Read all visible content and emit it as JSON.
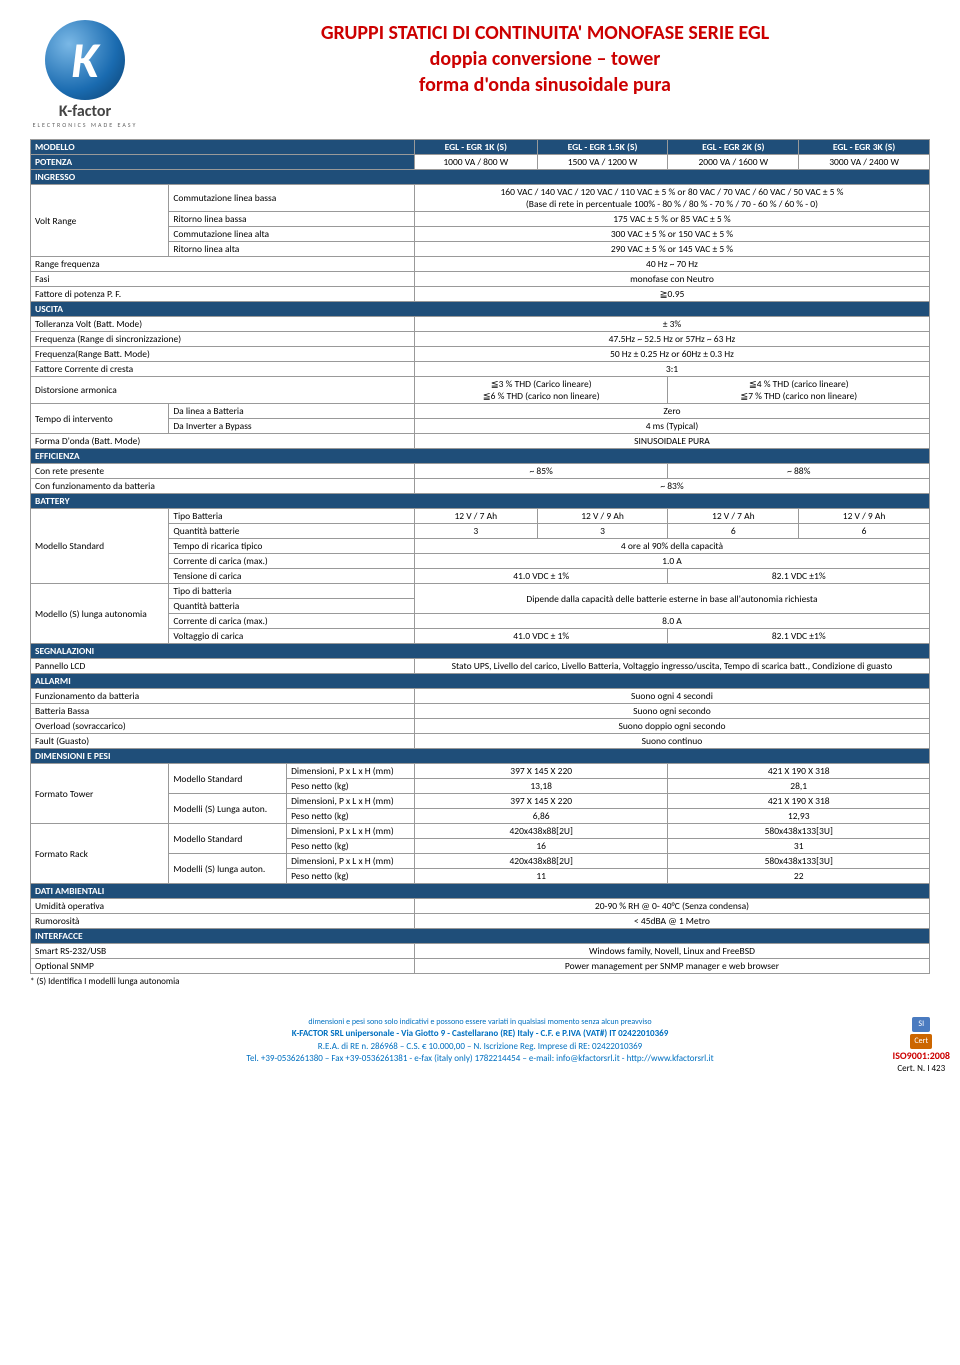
{
  "logo": {
    "name": "K-factor",
    "tagline": "ELECTRONICS MADE EASY"
  },
  "title": {
    "line1": "GRUPPI STATICI DI CONTINUITA' MONOFASE SERIE EGL",
    "line2": "doppia conversione – tower",
    "line3": "forma d'onda sinusoidale pura"
  },
  "models_row": {
    "label": "MODELLO",
    "m1": "EGL - EGR 1K (S)",
    "m2": "EGL - EGR 1.5K (S)",
    "m3": "EGL - EGR 2K (S)",
    "m4": "EGL - EGR 3K (S)"
  },
  "potenza": {
    "label": "POTENZA",
    "v1": "1000 VA / 800 W",
    "v2": "1500 VA / 1200 W",
    "v3": "2000 VA / 1600 W",
    "v4": "3000 VA / 2400 W"
  },
  "sections": {
    "ingresso": "INGRESSO",
    "uscita": "USCITA",
    "efficienza": "EFFICIENZA",
    "battery": "BATTERY",
    "segnalazioni": "SEGNALAZIONI",
    "allarmi": "ALLARMI",
    "dimensioni": "DIMENSIONI E PESI",
    "ambientali": "DATI AMBIENTALI",
    "interfacce": "INTERFACCE"
  },
  "ingresso": {
    "volt_range": "Volt Range",
    "cl_bassa": "Commutazione linea bassa",
    "cl_bassa_v": "160 VAC / 140 VAC / 120 VAC / 110 VAC ± 5 % or 80 VAC / 70 VAC / 60 VAC / 50 VAC ± 5 %\n(Base di rete in percentuale 100% - 80 % / 80 % - 70 % / 70 - 60 % / 60 % - 0)",
    "r_bassa": "Ritorno linea bassa",
    "r_bassa_v": "175 VAC ± 5 % or 85 VAC ± 5 %",
    "cl_alta": "Commutazione linea alta",
    "cl_alta_v": "300 VAC ± 5 % or 150 VAC ± 5 %",
    "r_alta": "Ritorno linea alta",
    "r_alta_v": "290 VAC ± 5 % or 145 VAC ± 5 %",
    "range_freq": "Range frequenza",
    "range_freq_v": "40 Hz ~ 70 Hz",
    "fasi": "Fasi",
    "fasi_v": "monofase con Neutro",
    "pf": "Fattore di potenza P. F.",
    "pf_v": "≧0.95"
  },
  "uscita": {
    "toll": "Tolleranza Volt (Batt. Mode)",
    "toll_v": "± 3%",
    "freq_sync": "Frequenza (Range di sincronizzazione)",
    "freq_sync_v": "47.5Hz ~ 52.5 Hz or 57Hz ~ 63 Hz",
    "freq_batt": "Frequenza(Range Batt. Mode)",
    "freq_batt_v": "50 Hz ± 0.25 Hz or 60Hz ± 0.3 Hz",
    "crest": "Fattore Corrente di cresta",
    "crest_v": "3:1",
    "dist": "Distorsione armonica",
    "dist_v1": "≦3 % THD (Carico lineare)\n≦6 % THD (carico non lineare)",
    "dist_v2": "≦4 % THD (carico lineare)\n≦7 % THD (carico non lineare)",
    "tempo": "Tempo di intervento",
    "linea_batt": "Da linea a Batteria",
    "linea_batt_v": "Zero",
    "inv_bypass": "Da Inverter a Bypass",
    "inv_bypass_v": "4 ms (Typical)",
    "forma": "Forma D'onda (Batt. Mode)",
    "forma_v": "SINUSOIDALE PURA"
  },
  "efficienza": {
    "rete": "Con rete presente",
    "rete_v1": "~ 85%",
    "rete_v2": "~ 88%",
    "batt": "Con funzionamento da batteria",
    "batt_v": "~ 83%"
  },
  "battery": {
    "standard": "Modello Standard",
    "tipo": "Tipo Batteria",
    "tipo_v1": "12 V / 7 Ah",
    "tipo_v2": "12 V / 9 Ah",
    "tipo_v3": "12 V / 7 Ah",
    "tipo_v4": "12 V / 9 Ah",
    "qty": "Quantità batterie",
    "qty_v1": "3",
    "qty_v2": "3",
    "qty_v3": "6",
    "qty_v4": "6",
    "ricarica": "Tempo di ricarica tipico",
    "ricarica_v": "4 ore al 90% della capacità",
    "corr": "Corrente di carica (max.)",
    "corr_v": "1.0 A",
    "tens": "Tensione di carica",
    "tens_v1": "41.0 VDC ± 1%",
    "tens_v2": "82.1 VDC ±1%",
    "lunga": "Modello (S) lunga autonomia",
    "tipo_batt2": "Tipo di batteria",
    "qty2": "Quantità batteria",
    "dipende": "Dipende dalla capacità delle batterie esterne in base all'autonomia richiesta",
    "corr2": "Corrente di carica (max.)",
    "corr2_v": "8.0 A",
    "volt2": "Voltaggio di carica",
    "volt2_v1": "41.0 VDC ± 1%",
    "volt2_v2": "82.1 VDC ±1%"
  },
  "segnalazioni": {
    "pannello": "Pannello LCD",
    "pannello_v": "Stato UPS, Livello del carico, Livello Batteria, Voltaggio ingresso/uscita, Tempo di scarica batt., Condizione di guasto"
  },
  "allarmi": {
    "batt": "Funzionamento da batteria",
    "batt_v": "Suono ogni 4 secondi",
    "bassa": "Batteria Bassa",
    "bassa_v": "Suono ogni secondo",
    "overload": "Overload (sovraccarico)",
    "overload_v": "Suono doppio ogni secondo",
    "fault": "Fault (Guasto)",
    "fault_v": "Suono continuo"
  },
  "dimensioni": {
    "tower": "Formato Tower",
    "rack": "Formato Rack",
    "std": "Modello Standard",
    "s_lunga": "Modelli (S) Lunga auton.",
    "s_lunga2": "Modelli (S) lunga auton.",
    "dim": "Dimensioni, P x L x H (mm)",
    "peso": "Peso netto (kg)",
    "t_std_dim1": "397 X 145 X 220",
    "t_std_dim2": "421 X 190 X 318",
    "t_std_peso1": "13,18",
    "t_std_peso2": "28,1",
    "t_s_dim1": "397 X 145 X 220",
    "t_s_dim2": "421 X 190 X 318",
    "t_s_peso1": "6,86",
    "t_s_peso2": "12,93",
    "r_std_dim1": "420x438x88[2U]",
    "r_std_dim2": "580x438x133[3U]",
    "r_std_peso1": "16",
    "r_std_peso2": "31",
    "r_s_dim1": "420x438x88[2U]",
    "r_s_dim2": "580x438x133[3U]",
    "r_s_peso1": "11",
    "r_s_peso2": "22"
  },
  "ambientali": {
    "umid": "Umidità operativa",
    "umid_v": "20-90 % RH @ 0- 40°C (Senza condensa)",
    "rum": "Rumorosità",
    "rum_v": "< 45dBA @ 1 Metro"
  },
  "interfacce": {
    "smart": "Smart RS-232/USB",
    "smart_v": "Windows family, Novell, Linux and FreeBSD",
    "snmp": "Optional SNMP",
    "snmp_v": "Power management per SNMP manager e web browser"
  },
  "footnote": "* (S) Identifica I modelli lunga autonomia",
  "footer": {
    "dim_note": "dimensioni e pesi sono solo indicativi e possono essere variati in qualsiasi momento senza alcun preavviso",
    "company": "K-FACTOR SRL unipersonale - Via Giotto 9 - Castellarano (RE) Italy - C.F. e P.IVA (VAT#) IT 02422010369",
    "rea": "R.E.A. di RE n. 286968 – C.S. € 10.000,00 – N. Iscrizione Reg. Imprese di RE: 02422010369",
    "contact": "Tel. +39-0536261380 – Fax +39-0536261381 - e-fax (italy only) 1782214454 – e-mail: info@kfactorsrl.it - http://www.kfactorsrl.it",
    "iso": "ISO9001:2008",
    "cert": "Cert. N. I 423"
  }
}
